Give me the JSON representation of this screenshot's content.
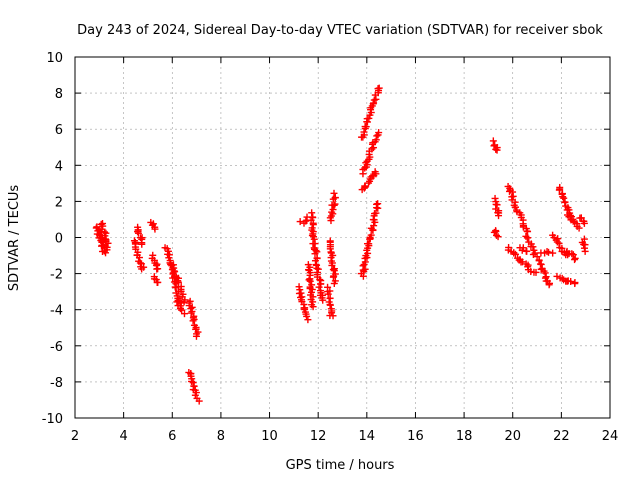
{
  "chart_data": {
    "type": "scatter",
    "title": "Day 243 of 2024, Sidereal Day-to-day VTEC variation (SDTVAR) for receiver sbok",
    "xlabel": "GPS time / hours",
    "ylabel": "SDTVAR / TECUs",
    "xlim": [
      2,
      24
    ],
    "ylim": [
      -10,
      10
    ],
    "xticks": [
      2,
      4,
      6,
      8,
      10,
      12,
      14,
      16,
      18,
      20,
      22,
      24
    ],
    "yticks": [
      -10,
      -8,
      -6,
      -4,
      -2,
      0,
      2,
      4,
      6,
      8,
      10
    ],
    "grid": true,
    "marker": "+",
    "color": "#ff0000",
    "series": [
      {
        "name": "SDTVAR",
        "segments": [
          {
            "x": [
              2.9,
              3.2
            ],
            "y": [
              0.6,
              -0.9
            ]
          },
          {
            "x": [
              3.0,
              3.3
            ],
            "y": [
              0.4,
              -0.7
            ]
          },
          {
            "x": [
              3.1,
              3.35
            ],
            "y": [
              0.8,
              -0.5
            ]
          },
          {
            "x": [
              4.4,
              4.8
            ],
            "y": [
              -0.1,
              -1.8
            ]
          },
          {
            "x": [
              4.55,
              4.8
            ],
            "y": [
              0.6,
              -0.4
            ]
          },
          {
            "x": [
              5.15,
              5.3
            ],
            "y": [
              0.8,
              0.4
            ]
          },
          {
            "x": [
              5.2,
              5.45
            ],
            "y": [
              -1.0,
              -1.8
            ]
          },
          {
            "x": [
              5.3,
              5.4
            ],
            "y": [
              -2.2,
              -2.5
            ]
          },
          {
            "x": [
              5.75,
              6.35
            ],
            "y": [
              -0.5,
              -3.8
            ]
          },
          {
            "x": [
              6.0,
              6.5
            ],
            "y": [
              -1.5,
              -3.5
            ]
          },
          {
            "x": [
              6.2,
              6.45
            ],
            "y": [
              -3.5,
              -4.2
            ]
          },
          {
            "x": [
              6.7,
              7.05
            ],
            "y": [
              -3.5,
              -5.5
            ]
          },
          {
            "x": [
              6.7,
              7.05
            ],
            "y": [
              -7.4,
              -9.0
            ]
          },
          {
            "x": [
              11.3,
              11.6
            ],
            "y": [
              0.8,
              1.1
            ]
          },
          {
            "x": [
              11.2,
              11.6
            ],
            "y": [
              -2.8,
              -4.5
            ]
          },
          {
            "x": [
              11.6,
              11.8
            ],
            "y": [
              -1.5,
              -3.8
            ]
          },
          {
            "x": [
              11.7,
              12.15
            ],
            "y": [
              1.3,
              -3.5
            ]
          },
          {
            "x": [
              12.4,
              12.55
            ],
            "y": [
              -2.8,
              -4.4
            ]
          },
          {
            "x": [
              12.5,
              12.7
            ],
            "y": [
              -0.2,
              -2.5
            ]
          },
          {
            "x": [
              12.5,
              12.7
            ],
            "y": [
              1.0,
              2.4
            ]
          },
          {
            "x": [
              13.8,
              14.5
            ],
            "y": [
              5.5,
              8.3
            ]
          },
          {
            "x": [
              13.85,
              14.45
            ],
            "y": [
              3.6,
              5.8
            ]
          },
          {
            "x": [
              13.8,
              14.4
            ],
            "y": [
              2.6,
              3.7
            ]
          },
          {
            "x": [
              13.8,
              14.45
            ],
            "y": [
              -2.2,
              1.9
            ]
          },
          {
            "x": [
              19.2,
              19.4
            ],
            "y": [
              5.3,
              4.8
            ]
          },
          {
            "x": [
              19.25,
              19.45
            ],
            "y": [
              2.1,
              1.2
            ]
          },
          {
            "x": [
              19.25,
              19.4
            ],
            "y": [
              0.4,
              0.1
            ]
          },
          {
            "x": [
              19.8,
              20.9
            ],
            "y": [
              2.9,
              -0.9
            ]
          },
          {
            "x": [
              19.8,
              20.9
            ],
            "y": [
              -0.6,
              -2.0
            ]
          },
          {
            "x": [
              20.3,
              20.6
            ],
            "y": [
              -0.5,
              -0.8
            ]
          },
          {
            "x": [
              21.0,
              21.5
            ],
            "y": [
              -1.1,
              -2.7
            ]
          },
          {
            "x": [
              21.2,
              21.6
            ],
            "y": [
              -0.8,
              -0.9
            ]
          },
          {
            "x": [
              21.7,
              22.2
            ],
            "y": [
              0.1,
              -1.0
            ]
          },
          {
            "x": [
              21.8,
              22.6
            ],
            "y": [
              -2.2,
              -2.6
            ]
          },
          {
            "x": [
              21.9,
              22.4
            ],
            "y": [
              2.8,
              1.0
            ]
          },
          {
            "x": [
              22.2,
              22.6
            ],
            "y": [
              -0.7,
              -1.2
            ]
          },
          {
            "x": [
              22.3,
              22.7
            ],
            "y": [
              1.2,
              0.6
            ]
          },
          {
            "x": [
              22.8,
              23.0
            ],
            "y": [
              1.1,
              0.8
            ]
          },
          {
            "x": [
              22.9,
              23.0
            ],
            "y": [
              -0.1,
              -0.7
            ]
          }
        ]
      }
    ]
  }
}
